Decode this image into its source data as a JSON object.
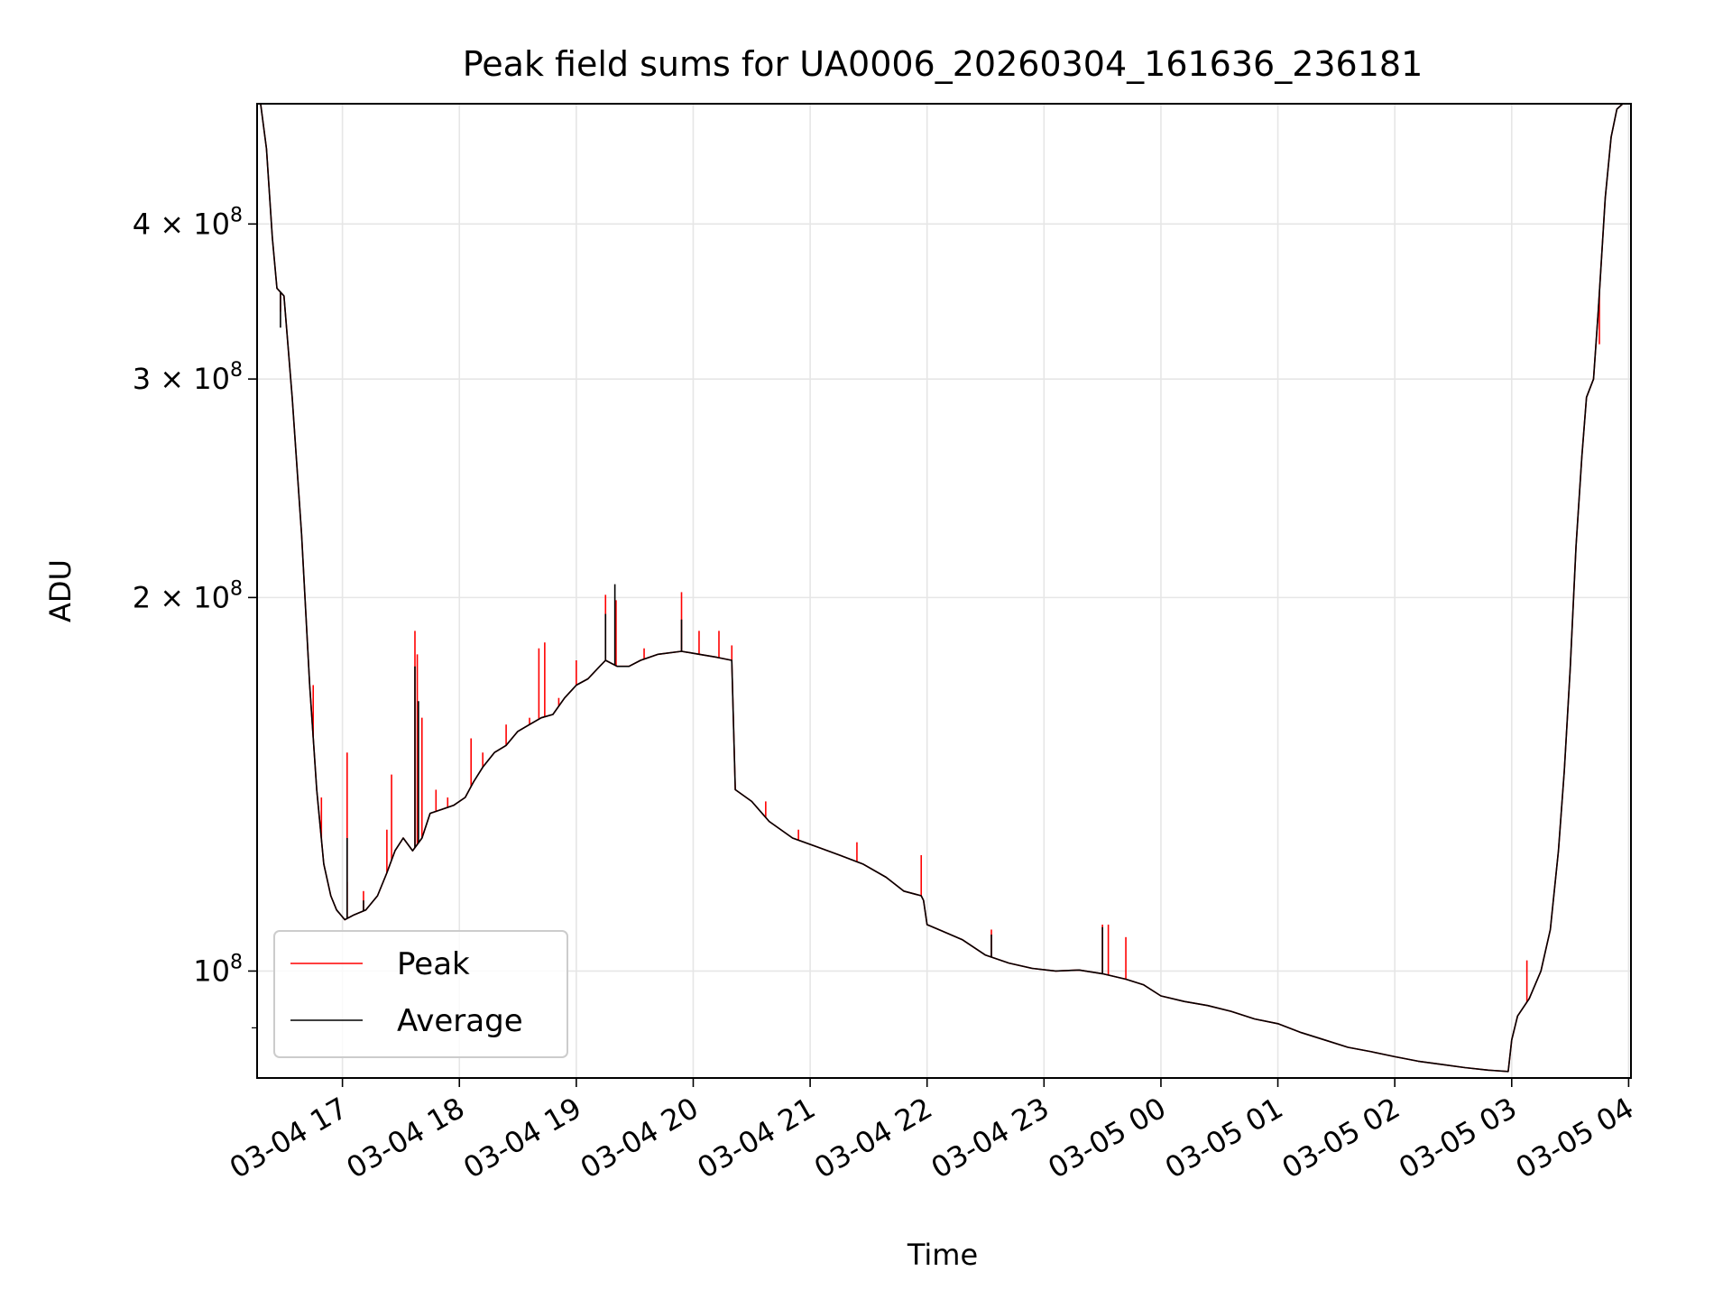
{
  "chart_data": {
    "type": "line",
    "title": "Peak field sums for UA0006_20260304_161636_236181",
    "xlabel": "Time",
    "ylabel": "ADU",
    "yscale": "log",
    "xlim_hours": [
      16.27,
      28.02
    ],
    "ylim": [
      82000000,
      500000000
    ],
    "grid": true,
    "legend_position": "lower-left",
    "x_ticks": [
      {
        "hour": 17,
        "label": "03-04 17"
      },
      {
        "hour": 18,
        "label": "03-04 18"
      },
      {
        "hour": 19,
        "label": "03-04 19"
      },
      {
        "hour": 20,
        "label": "03-04 20"
      },
      {
        "hour": 21,
        "label": "03-04 21"
      },
      {
        "hour": 22,
        "label": "03-04 22"
      },
      {
        "hour": 23,
        "label": "03-04 23"
      },
      {
        "hour": 24,
        "label": "03-05 00"
      },
      {
        "hour": 25,
        "label": "03-05 01"
      },
      {
        "hour": 26,
        "label": "03-05 02"
      },
      {
        "hour": 27,
        "label": "03-05 03"
      },
      {
        "hour": 28,
        "label": "03-05 04"
      }
    ],
    "y_ticks": [
      {
        "value": 100000000,
        "base": "10",
        "exp": "8",
        "mult": ""
      },
      {
        "value": 200000000,
        "base": "10",
        "exp": "8",
        "mult": "2 × "
      },
      {
        "value": 300000000,
        "base": "10",
        "exp": "8",
        "mult": "3 × "
      },
      {
        "value": 400000000,
        "base": "10",
        "exp": "8",
        "mult": "4 × "
      }
    ],
    "y_minor_ticks": [
      90000000
    ],
    "series": [
      {
        "name": "Peak",
        "color": "#ff0000",
        "points": [
          [
            16.27,
            500000000
          ],
          [
            16.3,
            500000000
          ],
          [
            16.35,
            460000000
          ],
          [
            16.4,
            390000000
          ],
          [
            16.44,
            355000000
          ],
          [
            16.5,
            350000000
          ],
          [
            16.57,
            290000000
          ],
          [
            16.65,
            225000000
          ],
          [
            16.72,
            170000000
          ],
          [
            16.78,
            140000000
          ],
          [
            16.84,
            122000000
          ],
          [
            16.9,
            115000000
          ],
          [
            16.95,
            112000000
          ],
          [
            17.02,
            110000000
          ],
          [
            17.1,
            111000000
          ],
          [
            17.2,
            112000000
          ],
          [
            17.3,
            115000000
          ],
          [
            17.38,
            120000000
          ],
          [
            17.45,
            125000000
          ],
          [
            17.52,
            128000000
          ],
          [
            17.6,
            125000000
          ],
          [
            17.68,
            128000000
          ],
          [
            17.75,
            134000000
          ],
          [
            17.85,
            135000000
          ],
          [
            17.95,
            136000000
          ],
          [
            18.05,
            138000000
          ],
          [
            18.12,
            142000000
          ],
          [
            18.2,
            146000000
          ],
          [
            18.3,
            150000000
          ],
          [
            18.4,
            152000000
          ],
          [
            18.5,
            156000000
          ],
          [
            18.6,
            158000000
          ],
          [
            18.7,
            160000000
          ],
          [
            18.8,
            161000000
          ],
          [
            18.9,
            166000000
          ],
          [
            19.0,
            170000000
          ],
          [
            19.1,
            172000000
          ],
          [
            19.2,
            176000000
          ],
          [
            19.25,
            178000000
          ],
          [
            19.35,
            176000000
          ],
          [
            19.45,
            176000000
          ],
          [
            19.55,
            178000000
          ],
          [
            19.7,
            180000000
          ],
          [
            19.9,
            181000000
          ],
          [
            20.05,
            180000000
          ],
          [
            20.2,
            179000000
          ],
          [
            20.33,
            178000000
          ],
          [
            20.36,
            140000000
          ],
          [
            20.5,
            137000000
          ],
          [
            20.65,
            132000000
          ],
          [
            20.85,
            128000000
          ],
          [
            21.05,
            126000000
          ],
          [
            21.25,
            124000000
          ],
          [
            21.45,
            122000000
          ],
          [
            21.65,
            119000000
          ],
          [
            21.8,
            116000000
          ],
          [
            21.95,
            115000000
          ],
          [
            21.97,
            114000000
          ],
          [
            22.0,
            109000000
          ],
          [
            22.1,
            108000000
          ],
          [
            22.3,
            106000000
          ],
          [
            22.5,
            103000000
          ],
          [
            22.7,
            101500000
          ],
          [
            22.9,
            100500000
          ],
          [
            23.1,
            100000000
          ],
          [
            23.3,
            100200000
          ],
          [
            23.5,
            99500000
          ],
          [
            23.7,
            98500000
          ],
          [
            23.85,
            97500000
          ],
          [
            24.0,
            95500000
          ],
          [
            24.2,
            94500000
          ],
          [
            24.4,
            93800000
          ],
          [
            24.6,
            92800000
          ],
          [
            24.8,
            91500000
          ],
          [
            25.0,
            90700000
          ],
          [
            25.2,
            89200000
          ],
          [
            25.4,
            88000000
          ],
          [
            25.6,
            86800000
          ],
          [
            25.8,
            86100000
          ],
          [
            26.0,
            85300000
          ],
          [
            26.2,
            84600000
          ],
          [
            26.4,
            84100000
          ],
          [
            26.6,
            83600000
          ],
          [
            26.8,
            83200000
          ],
          [
            26.97,
            83000000
          ],
          [
            27.0,
            88000000
          ],
          [
            27.05,
            92000000
          ],
          [
            27.15,
            95000000
          ],
          [
            27.25,
            100000000
          ],
          [
            27.33,
            108000000
          ],
          [
            27.4,
            125000000
          ],
          [
            27.45,
            145000000
          ],
          [
            27.5,
            175000000
          ],
          [
            27.55,
            220000000
          ],
          [
            27.6,
            260000000
          ],
          [
            27.64,
            290000000
          ],
          [
            27.7,
            300000000
          ],
          [
            27.74,
            340000000
          ],
          [
            27.8,
            420000000
          ],
          [
            27.85,
            470000000
          ],
          [
            27.9,
            495000000
          ],
          [
            27.95,
            500000000
          ],
          [
            28.02,
            500000000
          ]
        ],
        "spikes": [
          [
            16.47,
            340000000
          ],
          [
            16.75,
            170000000
          ],
          [
            16.82,
            138000000
          ],
          [
            17.04,
            150000000
          ],
          [
            17.04,
            118000000
          ],
          [
            17.18,
            116000000
          ],
          [
            17.38,
            130000000
          ],
          [
            17.42,
            144000000
          ],
          [
            17.5,
            127000000
          ],
          [
            17.62,
            188000000
          ],
          [
            17.64,
            180000000
          ],
          [
            17.68,
            160000000
          ],
          [
            17.8,
            140000000
          ],
          [
            17.9,
            138000000
          ],
          [
            18.1,
            154000000
          ],
          [
            18.2,
            150000000
          ],
          [
            18.4,
            158000000
          ],
          [
            18.6,
            160000000
          ],
          [
            18.68,
            182000000
          ],
          [
            18.73,
            184000000
          ],
          [
            18.85,
            166000000
          ],
          [
            19.0,
            178000000
          ],
          [
            19.25,
            201000000
          ],
          [
            19.34,
            199000000
          ],
          [
            19.58,
            182000000
          ],
          [
            19.9,
            202000000
          ],
          [
            20.05,
            188000000
          ],
          [
            20.22,
            188000000
          ],
          [
            20.33,
            183000000
          ],
          [
            20.62,
            137000000
          ],
          [
            20.9,
            130000000
          ],
          [
            21.4,
            127000000
          ],
          [
            21.95,
            124000000
          ],
          [
            22.55,
            108000000
          ],
          [
            23.5,
            109000000
          ],
          [
            23.55,
            109000000
          ],
          [
            23.7,
            106500000
          ],
          [
            27.13,
            102000000
          ],
          [
            27.75,
            320000000
          ]
        ]
      },
      {
        "name": "Average",
        "color": "#000000",
        "points": [
          [
            16.27,
            500000000
          ],
          [
            16.3,
            500000000
          ],
          [
            16.35,
            460000000
          ],
          [
            16.4,
            390000000
          ],
          [
            16.44,
            355000000
          ],
          [
            16.5,
            350000000
          ],
          [
            16.57,
            290000000
          ],
          [
            16.65,
            225000000
          ],
          [
            16.72,
            170000000
          ],
          [
            16.78,
            140000000
          ],
          [
            16.84,
            122000000
          ],
          [
            16.9,
            115000000
          ],
          [
            16.95,
            112000000
          ],
          [
            17.02,
            110000000
          ],
          [
            17.1,
            111000000
          ],
          [
            17.2,
            112000000
          ],
          [
            17.3,
            115000000
          ],
          [
            17.38,
            120000000
          ],
          [
            17.45,
            125000000
          ],
          [
            17.52,
            128000000
          ],
          [
            17.6,
            125000000
          ],
          [
            17.68,
            128000000
          ],
          [
            17.75,
            134000000
          ],
          [
            17.85,
            135000000
          ],
          [
            17.95,
            136000000
          ],
          [
            18.05,
            138000000
          ],
          [
            18.12,
            142000000
          ],
          [
            18.2,
            146000000
          ],
          [
            18.3,
            150000000
          ],
          [
            18.4,
            152000000
          ],
          [
            18.5,
            156000000
          ],
          [
            18.6,
            158000000
          ],
          [
            18.7,
            160000000
          ],
          [
            18.8,
            161000000
          ],
          [
            18.9,
            166000000
          ],
          [
            19.0,
            170000000
          ],
          [
            19.1,
            172000000
          ],
          [
            19.2,
            176000000
          ],
          [
            19.25,
            178000000
          ],
          [
            19.35,
            176000000
          ],
          [
            19.45,
            176000000
          ],
          [
            19.55,
            178000000
          ],
          [
            19.7,
            180000000
          ],
          [
            19.9,
            181000000
          ],
          [
            20.05,
            180000000
          ],
          [
            20.2,
            179000000
          ],
          [
            20.33,
            178000000
          ],
          [
            20.36,
            140000000
          ],
          [
            20.5,
            137000000
          ],
          [
            20.65,
            132000000
          ],
          [
            20.85,
            128000000
          ],
          [
            21.05,
            126000000
          ],
          [
            21.25,
            124000000
          ],
          [
            21.45,
            122000000
          ],
          [
            21.65,
            119000000
          ],
          [
            21.8,
            116000000
          ],
          [
            21.95,
            115000000
          ],
          [
            21.97,
            114000000
          ],
          [
            22.0,
            109000000
          ],
          [
            22.1,
            108000000
          ],
          [
            22.3,
            106000000
          ],
          [
            22.5,
            103000000
          ],
          [
            22.7,
            101500000
          ],
          [
            22.9,
            100500000
          ],
          [
            23.1,
            100000000
          ],
          [
            23.3,
            100200000
          ],
          [
            23.5,
            99500000
          ],
          [
            23.7,
            98500000
          ],
          [
            23.85,
            97500000
          ],
          [
            24.0,
            95500000
          ],
          [
            24.2,
            94500000
          ],
          [
            24.4,
            93800000
          ],
          [
            24.6,
            92800000
          ],
          [
            24.8,
            91500000
          ],
          [
            25.0,
            90700000
          ],
          [
            25.2,
            89200000
          ],
          [
            25.4,
            88000000
          ],
          [
            25.6,
            86800000
          ],
          [
            25.8,
            86100000
          ],
          [
            26.0,
            85300000
          ],
          [
            26.2,
            84600000
          ],
          [
            26.4,
            84100000
          ],
          [
            26.6,
            83600000
          ],
          [
            26.8,
            83200000
          ],
          [
            26.97,
            83000000
          ],
          [
            27.0,
            88000000
          ],
          [
            27.05,
            92000000
          ],
          [
            27.15,
            95000000
          ],
          [
            27.25,
            100000000
          ],
          [
            27.33,
            108000000
          ],
          [
            27.4,
            125000000
          ],
          [
            27.45,
            145000000
          ],
          [
            27.5,
            175000000
          ],
          [
            27.55,
            220000000
          ],
          [
            27.6,
            260000000
          ],
          [
            27.64,
            290000000
          ],
          [
            27.7,
            300000000
          ],
          [
            27.74,
            340000000
          ],
          [
            27.8,
            420000000
          ],
          [
            27.85,
            470000000
          ],
          [
            27.9,
            495000000
          ],
          [
            27.95,
            500000000
          ],
          [
            28.02,
            500000000
          ]
        ],
        "spikes": [
          [
            16.47,
            330000000
          ],
          [
            17.04,
            128000000
          ],
          [
            17.18,
            114000000
          ],
          [
            17.62,
            176000000
          ],
          [
            17.65,
            165000000
          ],
          [
            19.25,
            194000000
          ],
          [
            19.33,
            205000000
          ],
          [
            19.9,
            192000000
          ],
          [
            22.55,
            107000000
          ],
          [
            23.5,
            108500000
          ]
        ]
      }
    ]
  }
}
